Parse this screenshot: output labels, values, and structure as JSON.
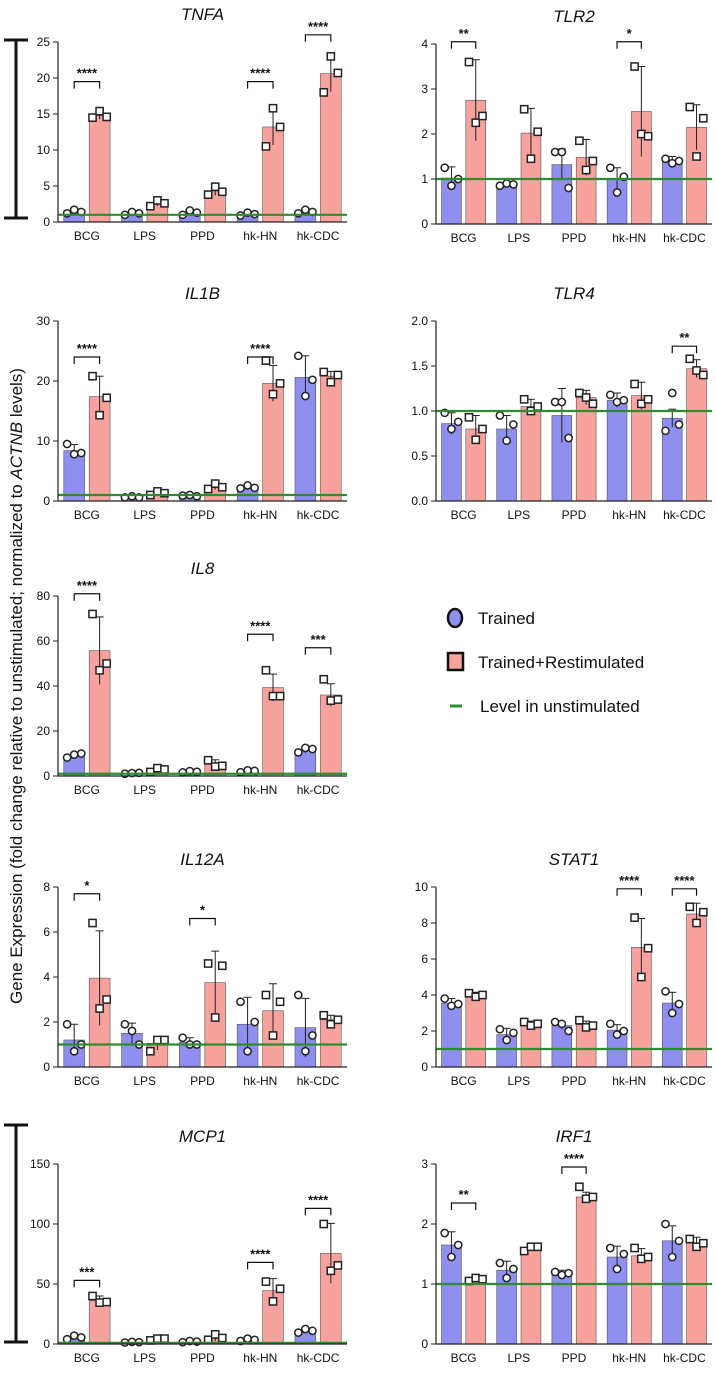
{
  "figure": {
    "ylabel_parts": [
      "Gene Expression (fold change relative to unstimulated; normalized to ",
      "ACTNB",
      " levels)"
    ],
    "legend": [
      {
        "label": "Trained",
        "marker": "circle"
      },
      {
        "label": "Trained+Restimulated",
        "marker": "square"
      },
      {
        "label": "Level in unstimulated",
        "marker": "line"
      }
    ],
    "colors": {
      "trained": "#8f8ff0",
      "restim": "#f7a29c",
      "baseline": "#2e8b2e",
      "axis": "#222222"
    }
  },
  "chart_data": [
    {
      "type": "bar",
      "title": "TNFA",
      "categories": [
        "BCG",
        "LPS",
        "PPD",
        "hk-HN",
        "hk-CDC"
      ],
      "ylim": [
        0,
        25
      ],
      "yticks": [
        0,
        5,
        10,
        15,
        20,
        25
      ],
      "baseline": 1,
      "series": [
        {
          "name": "Trained",
          "values": [
            1.4,
            1.2,
            1.3,
            1.1,
            1.4
          ],
          "err": [
            0.4,
            0.3,
            0.4,
            0.3,
            0.3
          ],
          "points": [
            [
              1.2,
              1.7,
              1.4
            ],
            [
              1.0,
              1.4,
              1.2
            ],
            [
              1.0,
              1.6,
              1.3
            ],
            [
              0.9,
              1.3,
              1.1
            ],
            [
              1.2,
              1.7,
              1.4
            ]
          ]
        },
        {
          "name": "Trained+Restimulated",
          "values": [
            14.8,
            2.6,
            4.3,
            13.2,
            20.6
          ],
          "err": [
            0.5,
            0.4,
            0.6,
            2.5,
            2.5
          ],
          "points": [
            [
              14.5,
              15.4,
              14.6
            ],
            [
              2.2,
              3.0,
              2.6
            ],
            [
              3.8,
              4.9,
              4.2
            ],
            [
              10.5,
              15.8,
              13.2
            ],
            [
              18.0,
              23.0,
              20.7
            ]
          ]
        }
      ],
      "significance": [
        {
          "category": "BCG",
          "label": "****",
          "y": 19.5
        },
        {
          "category": "hk-HN",
          "label": "****",
          "y": 19.5
        },
        {
          "category": "hk-CDC",
          "label": "****",
          "y": 26.0
        }
      ]
    },
    {
      "type": "bar",
      "title": "TLR2",
      "categories": [
        "BCG",
        "LPS",
        "PPD",
        "hk-HN",
        "hk-CDC"
      ],
      "ylim": [
        0,
        4
      ],
      "yticks": [
        0,
        1,
        2,
        3,
        4
      ],
      "baseline": 1,
      "series": [
        {
          "name": "Trained",
          "values": [
            1.02,
            0.88,
            1.32,
            1.0,
            1.4
          ],
          "err": [
            0.25,
            0.05,
            0.35,
            0.25,
            0.1
          ],
          "points": [
            [
              1.25,
              0.85,
              1.0
            ],
            [
              0.85,
              0.9,
              0.88
            ],
            [
              1.6,
              1.6,
              0.8
            ],
            [
              1.25,
              0.7,
              1.05
            ],
            [
              1.45,
              1.35,
              1.4
            ]
          ]
        },
        {
          "name": "Trained+Restimulated",
          "values": [
            2.75,
            2.02,
            1.48,
            2.5,
            2.15
          ],
          "err": [
            0.9,
            0.55,
            0.4,
            1.0,
            0.5
          ],
          "points": [
            [
              3.6,
              2.25,
              2.4
            ],
            [
              2.55,
              1.45,
              2.05
            ],
            [
              1.85,
              1.2,
              1.4
            ],
            [
              3.5,
              2.0,
              1.95
            ],
            [
              2.6,
              1.5,
              2.35
            ]
          ]
        }
      ],
      "significance": [
        {
          "category": "BCG",
          "label": "**",
          "y": 4.05
        },
        {
          "category": "hk-HN",
          "label": "*",
          "y": 4.05
        }
      ]
    },
    {
      "type": "bar",
      "title": "IL1B",
      "categories": [
        "BCG",
        "LPS",
        "PPD",
        "hk-HN",
        "hk-CDC"
      ],
      "ylim": [
        0,
        30
      ],
      "yticks": [
        0,
        10,
        20,
        30
      ],
      "baseline": 1,
      "series": [
        {
          "name": "Trained",
          "values": [
            8.4,
            0.7,
            0.9,
            2.3,
            20.6
          ],
          "err": [
            1.0,
            0.2,
            0.2,
            0.4,
            3.6
          ],
          "points": [
            [
              9.5,
              7.8,
              8.0
            ],
            [
              0.6,
              0.8,
              0.6
            ],
            [
              0.9,
              1.0,
              0.8
            ],
            [
              2.1,
              2.6,
              2.2
            ],
            [
              24.2,
              17.5,
              20.2
            ]
          ]
        },
        {
          "name": "Trained+Restimulated",
          "values": [
            17.4,
            1.3,
            2.4,
            19.6,
            20.8
          ],
          "err": [
            3.4,
            0.3,
            0.5,
            3.0,
            0.8
          ],
          "points": [
            [
              20.8,
              14.3,
              17.2
            ],
            [
              1.0,
              1.6,
              1.3
            ],
            [
              2.0,
              2.9,
              2.3
            ],
            [
              23.4,
              17.8,
              19.6
            ],
            [
              21.5,
              19.8,
              21.0
            ]
          ]
        }
      ],
      "significance": [
        {
          "category": "BCG",
          "label": "****",
          "y": 24.0
        },
        {
          "category": "hk-HN",
          "label": "****",
          "y": 24.0
        }
      ]
    },
    {
      "type": "bar",
      "title": "TLR4",
      "categories": [
        "BCG",
        "LPS",
        "PPD",
        "hk-HN",
        "hk-CDC"
      ],
      "ylim": [
        0,
        2
      ],
      "yticks": [
        0.0,
        0.5,
        1.0,
        1.5,
        2.0
      ],
      "baseline": 1,
      "series": [
        {
          "name": "Trained",
          "values": [
            0.86,
            0.8,
            0.95,
            1.12,
            0.92
          ],
          "err": [
            0.12,
            0.15,
            0.3,
            0.08,
            0.1
          ],
          "points": [
            [
              0.98,
              0.8,
              0.88
            ],
            [
              0.95,
              0.67,
              0.85
            ],
            [
              1.1,
              1.1,
              0.7
            ],
            [
              1.18,
              1.1,
              1.12
            ],
            [
              0.78,
              1.2,
              0.85
            ]
          ]
        },
        {
          "name": "Trained+Restimulated",
          "values": [
            0.8,
            1.05,
            1.15,
            1.17,
            1.47
          ],
          "err": [
            0.15,
            0.08,
            0.08,
            0.15,
            0.1
          ],
          "points": [
            [
              0.93,
              0.68,
              0.8
            ],
            [
              1.13,
              1.0,
              1.05
            ],
            [
              1.2,
              1.15,
              1.08
            ],
            [
              1.3,
              1.08,
              1.13
            ],
            [
              1.58,
              1.45,
              1.4
            ]
          ]
        }
      ],
      "significance": [
        {
          "category": "hk-CDC",
          "label": "**",
          "y": 1.72
        }
      ]
    },
    {
      "type": "bar",
      "title": "IL8",
      "categories": [
        "BCG",
        "LPS",
        "PPD",
        "hk-HN",
        "hk-CDC"
      ],
      "ylim": [
        0,
        80
      ],
      "yticks": [
        0,
        20,
        40,
        60,
        80
      ],
      "baseline": 1,
      "series": [
        {
          "name": "Trained",
          "values": [
            9.2,
            1.2,
            1.9,
            2.2,
            11.6
          ],
          "err": [
            1.0,
            0.3,
            0.4,
            0.6,
            1.5
          ],
          "points": [
            [
              8.2,
              9.5,
              10.0
            ],
            [
              1.0,
              1.3,
              1.4
            ],
            [
              1.6,
              2.2,
              1.9
            ],
            [
              1.7,
              2.5,
              2.3
            ],
            [
              10.5,
              12.5,
              12.0
            ]
          ]
        },
        {
          "name": "Trained+Restimulated",
          "values": [
            55.7,
            2.7,
            5.2,
            39.3,
            36.0
          ],
          "err": [
            15.0,
            1.0,
            2.0,
            6.0,
            5.0
          ],
          "points": [
            [
              72.0,
              47.0,
              50.0
            ],
            [
              1.8,
              3.5,
              2.9
            ],
            [
              7.0,
              4.2,
              4.5
            ],
            [
              47.0,
              35.5,
              35.5
            ],
            [
              43.0,
              33.5,
              34.0
            ]
          ]
        }
      ],
      "significance": [
        {
          "category": "BCG",
          "label": "****",
          "y": 81.0
        },
        {
          "category": "hk-HN",
          "label": "****",
          "y": 63.0
        },
        {
          "category": "hk-CDC",
          "label": "***",
          "y": 57.0
        }
      ]
    },
    {
      "type": "bar",
      "title": "IL12A",
      "categories": [
        "BCG",
        "LPS",
        "PPD",
        "hk-HN",
        "hk-CDC"
      ],
      "ylim": [
        0,
        8
      ],
      "yticks": [
        0,
        2,
        4,
        6,
        8
      ],
      "baseline": 1,
      "series": [
        {
          "name": "Trained",
          "values": [
            1.2,
            1.5,
            1.1,
            1.9,
            1.75
          ],
          "err": [
            0.7,
            0.45,
            0.2,
            1.2,
            1.3
          ],
          "points": [
            [
              1.9,
              0.7,
              1.0
            ],
            [
              1.9,
              1.6,
              1.0
            ],
            [
              1.3,
              1.0,
              1.0
            ],
            [
              2.9,
              0.7,
              2.0
            ],
            [
              3.2,
              0.7,
              1.4
            ]
          ]
        },
        {
          "name": "Trained+Restimulated",
          "values": [
            3.95,
            1.05,
            3.75,
            2.5,
            2.1
          ],
          "err": [
            2.1,
            0.3,
            1.4,
            1.2,
            0.2
          ],
          "points": [
            [
              6.4,
              2.6,
              3.0
            ],
            [
              0.7,
              1.2,
              1.2
            ],
            [
              4.6,
              2.2,
              4.5
            ],
            [
              3.2,
              1.4,
              2.9
            ],
            [
              2.3,
              1.9,
              2.1
            ]
          ]
        }
      ],
      "significance": [
        {
          "category": "BCG",
          "label": "*",
          "y": 7.7
        },
        {
          "category": "PPD",
          "label": "*",
          "y": 6.6
        }
      ]
    },
    {
      "type": "bar",
      "title": "STAT1",
      "categories": [
        "BCG",
        "LPS",
        "PPD",
        "hk-HN",
        "hk-CDC"
      ],
      "ylim": [
        0,
        10
      ],
      "yticks": [
        0,
        2,
        4,
        6,
        8,
        10
      ],
      "baseline": 1,
      "series": [
        {
          "name": "Trained",
          "values": [
            3.55,
            1.8,
            2.3,
            2.05,
            3.55
          ],
          "err": [
            0.25,
            0.35,
            0.2,
            0.3,
            0.6
          ],
          "points": [
            [
              3.8,
              3.4,
              3.5
            ],
            [
              2.1,
              1.5,
              1.9
            ],
            [
              2.5,
              2.4,
              2.0
            ],
            [
              2.4,
              1.8,
              2.0
            ],
            [
              4.2,
              3.0,
              3.5
            ]
          ]
        },
        {
          "name": "Trained+Restimulated",
          "values": [
            4.0,
            2.4,
            2.35,
            6.65,
            8.5
          ],
          "err": [
            0.15,
            0.15,
            0.2,
            1.6,
            0.6
          ],
          "points": [
            [
              4.1,
              3.9,
              4.0
            ],
            [
              2.5,
              2.3,
              2.4
            ],
            [
              2.6,
              2.2,
              2.3
            ],
            [
              8.3,
              5.0,
              6.6
            ],
            [
              8.9,
              8.0,
              8.6
            ]
          ]
        }
      ],
      "significance": [
        {
          "category": "hk-HN",
          "label": "****",
          "y": 9.9
        },
        {
          "category": "hk-CDC",
          "label": "****",
          "y": 9.9
        }
      ]
    },
    {
      "type": "bar",
      "title": "MCP1",
      "categories": [
        "BCG",
        "LPS",
        "PPD",
        "hk-HN",
        "hk-CDC"
      ],
      "ylim": [
        0,
        150
      ],
      "yticks": [
        0,
        50,
        100,
        150
      ],
      "baseline": 1,
      "series": [
        {
          "name": "Trained",
          "values": [
            5.5,
            1.5,
            2.0,
            3.5,
            11.0
          ],
          "err": [
            2.0,
            0.5,
            1.0,
            1.5,
            2.0
          ],
          "points": [
            [
              4.0,
              7.0,
              5.5
            ],
            [
              1.2,
              1.8,
              1.5
            ],
            [
              1.5,
              2.5,
              2.0
            ],
            [
              2.5,
              4.5,
              3.5
            ],
            [
              9.5,
              12.5,
              11.0
            ]
          ]
        },
        {
          "name": "Trained+Restimulated",
          "values": [
            36.0,
            4.0,
            5.5,
            44.5,
            75.5
          ],
          "err": [
            4.0,
            1.5,
            3.0,
            10.0,
            25.0
          ],
          "points": [
            [
              40.0,
              34.5,
              35.0
            ],
            [
              3.0,
              4.5,
              4.5
            ],
            [
              3.5,
              8.0,
              5.0
            ],
            [
              52.0,
              35.5,
              46.0
            ],
            [
              100.0,
              61.0,
              65.5
            ]
          ]
        }
      ],
      "significance": [
        {
          "category": "BCG",
          "label": "***",
          "y": 53.0
        },
        {
          "category": "hk-HN",
          "label": "****",
          "y": 68.0
        },
        {
          "category": "hk-CDC",
          "label": "****",
          "y": 113.0
        }
      ]
    },
    {
      "type": "bar",
      "title": "IRF1",
      "categories": [
        "BCG",
        "LPS",
        "PPD",
        "hk-HN",
        "hk-CDC"
      ],
      "ylim": [
        0,
        3
      ],
      "yticks": [
        0,
        1,
        2,
        3
      ],
      "baseline": 1,
      "series": [
        {
          "name": "Trained",
          "values": [
            1.65,
            1.23,
            1.18,
            1.45,
            1.72
          ],
          "err": [
            0.22,
            0.15,
            0.05,
            0.18,
            0.25
          ],
          "points": [
            [
              1.85,
              1.45,
              1.65
            ],
            [
              1.35,
              1.1,
              1.25
            ],
            [
              1.2,
              1.15,
              1.18
            ],
            [
              1.6,
              1.25,
              1.5
            ],
            [
              2.0,
              1.45,
              1.72
            ]
          ]
        },
        {
          "name": "Trained+Restimulated",
          "values": [
            1.07,
            1.6,
            2.45,
            1.47,
            1.68
          ],
          "err": [
            0.04,
            0.03,
            0.08,
            0.12,
            0.1
          ],
          "points": [
            [
              1.05,
              1.1,
              1.08
            ],
            [
              1.55,
              1.62,
              1.62
            ],
            [
              2.62,
              2.42,
              2.45
            ],
            [
              1.6,
              1.42,
              1.45
            ],
            [
              1.75,
              1.62,
              1.68
            ]
          ]
        }
      ],
      "significance": [
        {
          "category": "BCG",
          "label": "**",
          "y": 2.35
        },
        {
          "category": "PPD",
          "label": "****",
          "y": 2.95
        }
      ]
    }
  ]
}
